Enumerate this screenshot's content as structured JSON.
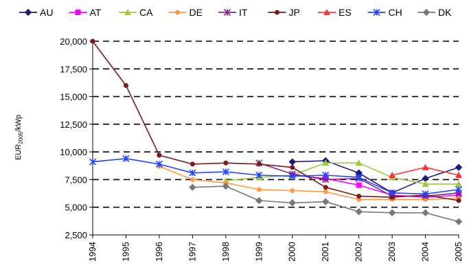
{
  "chart_data": {
    "type": "line",
    "title": "",
    "xlabel": "",
    "ylabel": "EUR",
    "ylabel_sub": "2005",
    "ylabel_suffix": "/kWp",
    "ylim": [
      2500,
      20000
    ],
    "yticks": [
      2500,
      5000,
      7500,
      10000,
      12500,
      15000,
      17500,
      20000
    ],
    "ytick_labels": [
      "2,500",
      "5,000",
      "7,500",
      "10,000",
      "12,500",
      "15,000",
      "17,500",
      "20,000"
    ],
    "grid": "horizontal dashed",
    "legend_position": "top",
    "categories": [
      "1994",
      "1995",
      "1996",
      "1997",
      "1998",
      "1999",
      "2000",
      "2001",
      "2002",
      "2003",
      "2004",
      "2005"
    ],
    "series": [
      {
        "name": "AU",
        "color": "#1a1a7a",
        "marker": "diamond",
        "values": [
          null,
          null,
          null,
          null,
          null,
          null,
          9100,
          9200,
          8100,
          6300,
          7600,
          8600
        ]
      },
      {
        "name": "AT",
        "color": "#ff00ff",
        "marker": "square",
        "values": [
          null,
          null,
          null,
          null,
          null,
          null,
          7900,
          7600,
          7000,
          6100,
          5900,
          6100
        ]
      },
      {
        "name": "CA",
        "color": "#99cc33",
        "marker": "triangle",
        "values": [
          null,
          null,
          null,
          null,
          7400,
          7700,
          7900,
          9000,
          9000,
          7700,
          7100,
          7100
        ]
      },
      {
        "name": "DE",
        "color": "#ff9944",
        "marker": "circle",
        "values": [
          null,
          null,
          8700,
          7500,
          7200,
          6600,
          6500,
          6400,
          5700,
          5700,
          5700,
          5800
        ]
      },
      {
        "name": "IT",
        "color": "#882288",
        "marker": "star",
        "values": [
          null,
          null,
          null,
          null,
          null,
          9000,
          8000,
          7500,
          7600,
          6000,
          6000,
          6300
        ]
      },
      {
        "name": "JP",
        "color": "#7a1a1a",
        "marker": "circle",
        "values": [
          20000,
          16000,
          9700,
          8900,
          9000,
          8900,
          8600,
          6800,
          6000,
          5900,
          6100,
          5600
        ]
      },
      {
        "name": "ES",
        "color": "#ff3333",
        "marker": "triangle",
        "values": [
          null,
          null,
          null,
          null,
          null,
          null,
          null,
          null,
          null,
          7900,
          8600,
          7900
        ]
      },
      {
        "name": "CH",
        "color": "#2244ff",
        "marker": "star",
        "values": [
          9100,
          9400,
          8900,
          8100,
          8200,
          7900,
          7800,
          7900,
          7700,
          6300,
          6200,
          6600
        ]
      },
      {
        "name": "DK",
        "color": "#777777",
        "marker": "diamond",
        "values": [
          null,
          null,
          null,
          6800,
          6900,
          5600,
          5400,
          5500,
          4600,
          4500,
          4500,
          3700
        ]
      }
    ]
  }
}
